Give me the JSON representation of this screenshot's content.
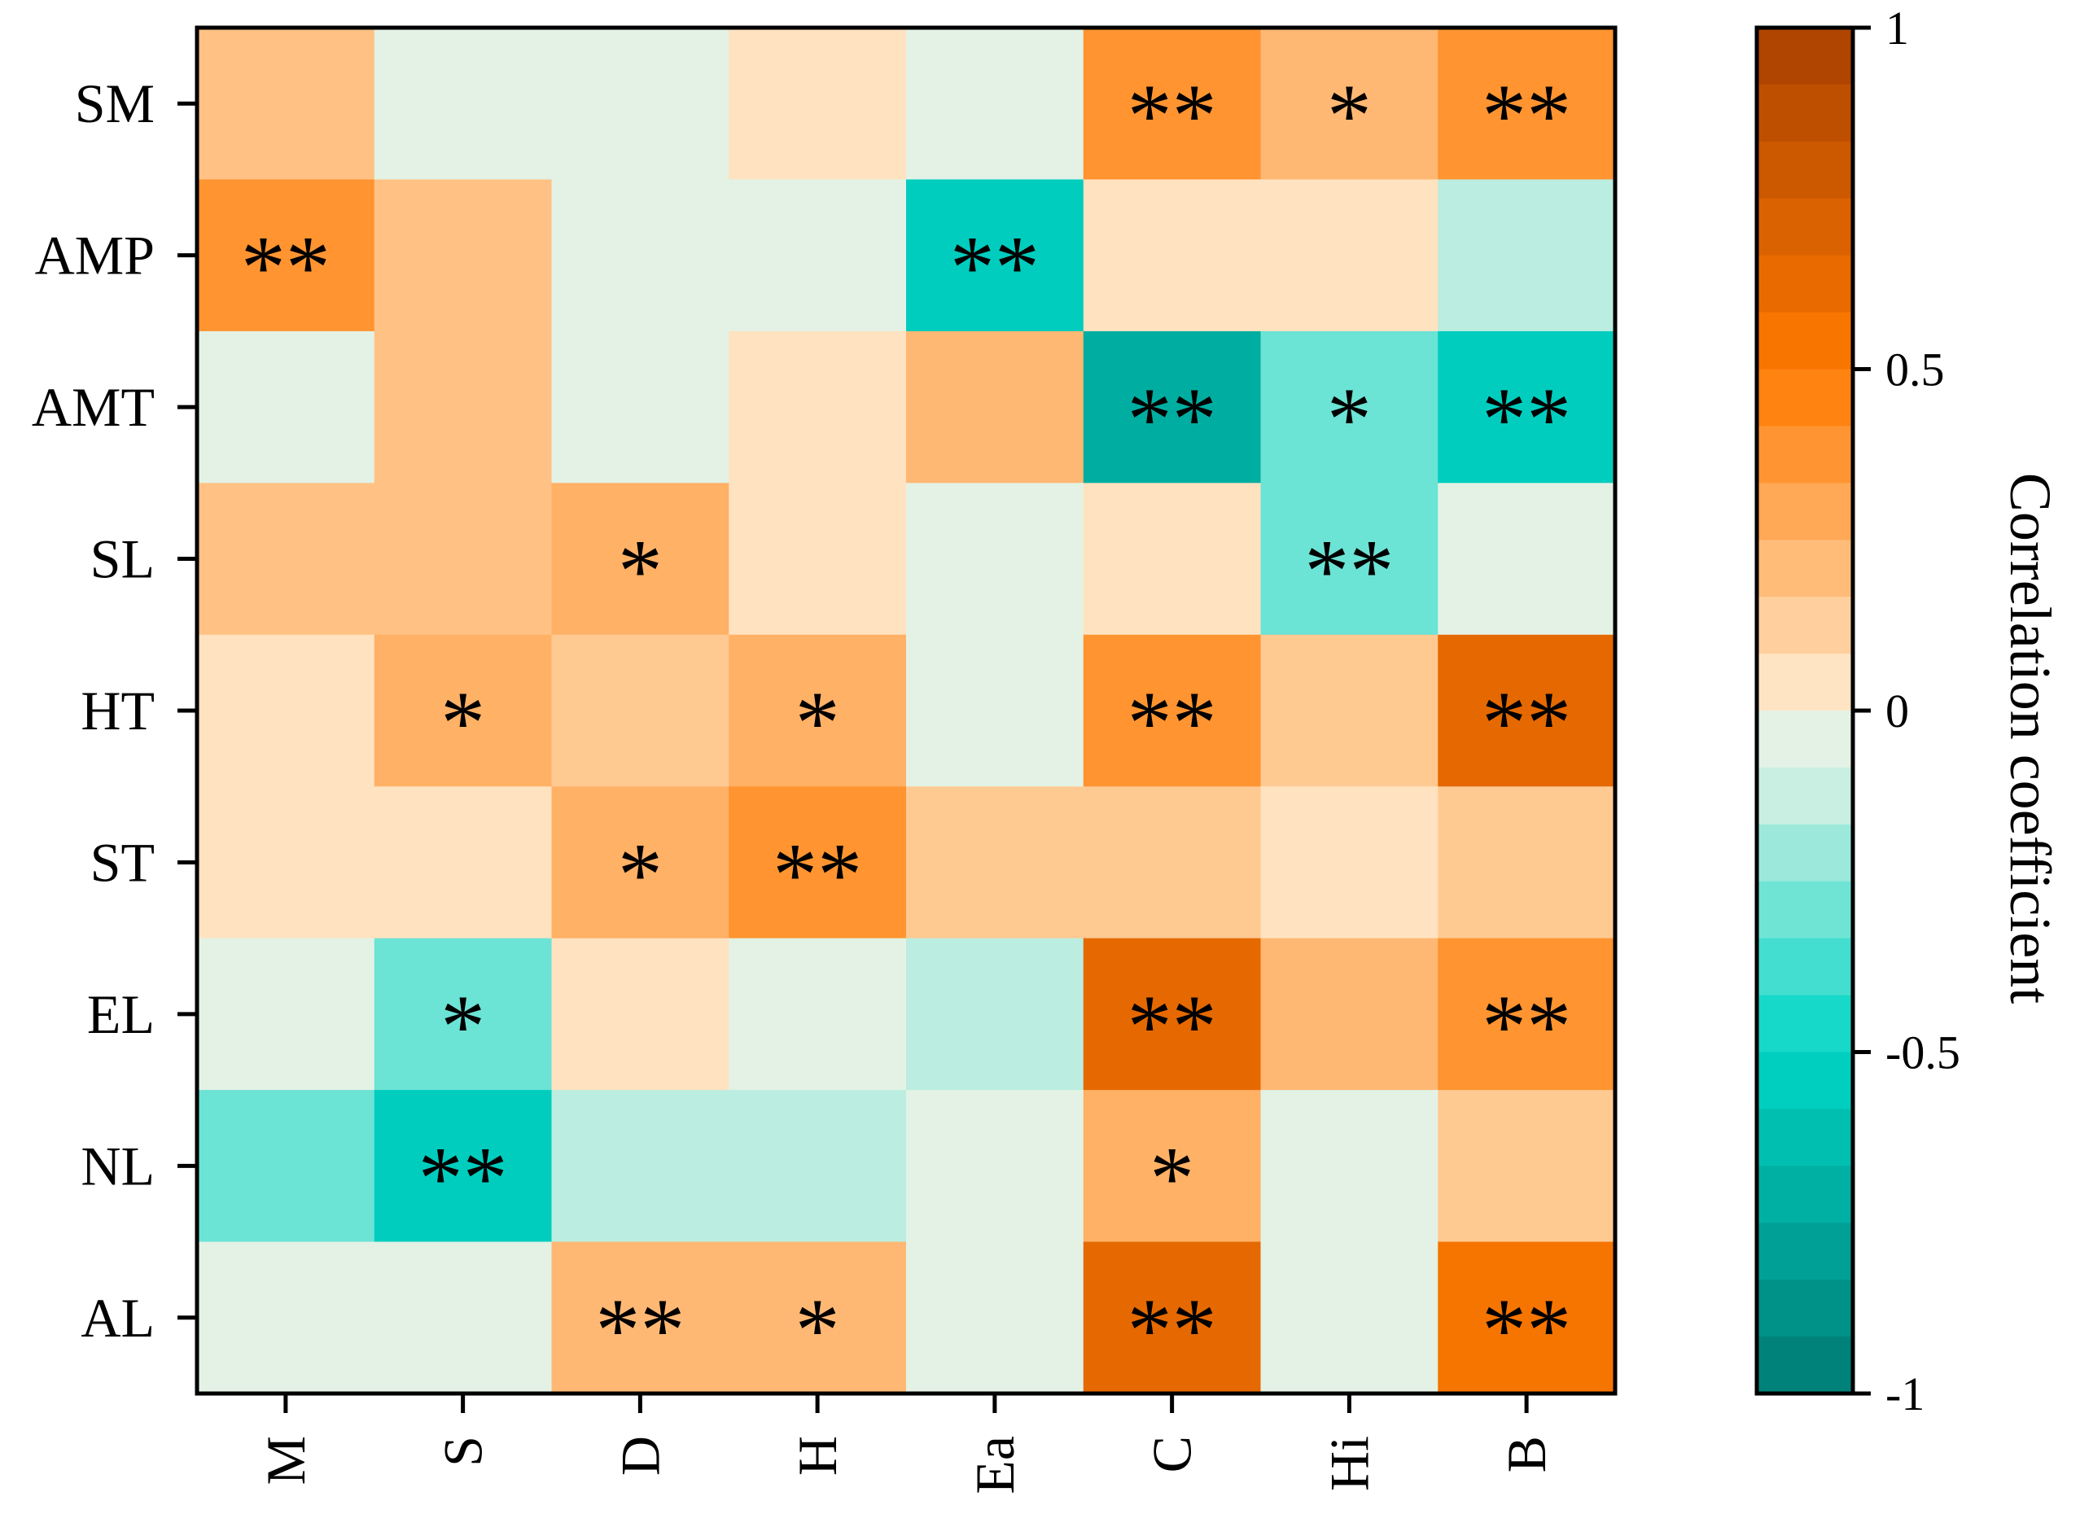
{
  "chart_data": {
    "type": "heatmap",
    "title": "",
    "columns": [
      "M",
      "S",
      "D",
      "H",
      "Ea",
      "C",
      "Hi",
      "B"
    ],
    "rows": [
      "SM",
      "AMP",
      "AMT",
      "SL",
      "HT",
      "ST",
      "EL",
      "NL",
      "AL"
    ],
    "values": [
      [
        0.18,
        -0.05,
        -0.05,
        0.05,
        -0.05,
        0.38,
        0.22,
        0.38
      ],
      [
        0.38,
        0.18,
        -0.05,
        -0.05,
        -0.55,
        0.05,
        0.05,
        -0.15
      ],
      [
        -0.05,
        0.18,
        -0.05,
        0.05,
        0.22,
        -0.72,
        -0.3,
        -0.55
      ],
      [
        0.18,
        0.18,
        0.25,
        0.05,
        -0.05,
        0.05,
        -0.3,
        -0.05
      ],
      [
        0.05,
        0.25,
        0.15,
        0.25,
        -0.05,
        0.38,
        0.15,
        0.65
      ],
      [
        0.05,
        0.05,
        0.25,
        0.38,
        0.15,
        0.15,
        0.05,
        0.15
      ],
      [
        -0.05,
        -0.3,
        0.05,
        -0.05,
        -0.15,
        0.65,
        0.22,
        0.38
      ],
      [
        -0.3,
        -0.55,
        -0.15,
        -0.15,
        -0.05,
        0.25,
        -0.05,
        0.15
      ],
      [
        -0.05,
        -0.05,
        0.22,
        0.22,
        -0.05,
        0.65,
        -0.05,
        0.55
      ]
    ],
    "significance": [
      [
        "",
        "",
        "",
        "",
        "",
        "**",
        "*",
        "**"
      ],
      [
        "**",
        "",
        "",
        "",
        "**",
        "",
        "",
        ""
      ],
      [
        "",
        "",
        "",
        "",
        "",
        "**",
        "*",
        "**"
      ],
      [
        "",
        "",
        "*",
        "",
        "",
        "",
        "**",
        ""
      ],
      [
        "",
        "*",
        "",
        "*",
        "",
        "**",
        "",
        "**"
      ],
      [
        "",
        "",
        "*",
        "**",
        "",
        "",
        "",
        ""
      ],
      [
        "",
        "*",
        "",
        "",
        "",
        "**",
        "",
        "**"
      ],
      [
        "",
        "**",
        "",
        "",
        "",
        "*",
        "",
        ""
      ],
      [
        "",
        "",
        "**",
        "*",
        "",
        "**",
        "",
        "**"
      ]
    ],
    "colorbar": {
      "label": "Correlation coefficient",
      "range": [
        -1,
        1
      ],
      "ticks": [
        "1",
        "0.5",
        "0",
        "-0.5",
        "-1"
      ],
      "tick_values": [
        1,
        0.5,
        0,
        -0.5,
        -1
      ],
      "levels": 24
    },
    "colors": {
      "low": "#007a73",
      "mid_low": "#00d6c6",
      "zero": "#fff1dc",
      "mid_high": "#ff7a00",
      "high": "#a84000"
    }
  }
}
